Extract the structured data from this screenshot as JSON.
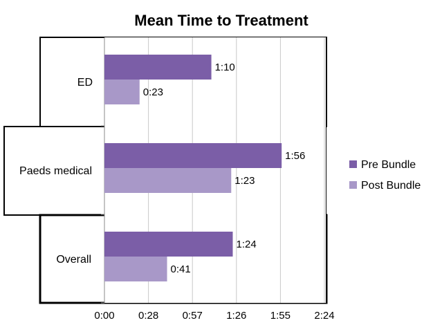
{
  "chart_data": {
    "type": "bar",
    "orientation": "horizontal",
    "title": "Mean Time to Treatment",
    "categories": [
      "ED",
      "Paeds medical",
      "Overall"
    ],
    "series": [
      {
        "name": "Pre Bundle",
        "color": "#7b5ea7",
        "values": [
          70,
          116,
          84
        ],
        "labels": [
          "1:10",
          "1:56",
          "1:24"
        ]
      },
      {
        "name": "Post Bundle",
        "color": "#a898c8",
        "values": [
          23,
          83,
          41
        ],
        "labels": [
          "0:23",
          "1:23",
          "0:41"
        ]
      }
    ],
    "xlim": [
      0,
      144
    ],
    "xticks": [
      0,
      28.8,
      57.6,
      86.4,
      115.2,
      144
    ],
    "xtick_labels": [
      "0:00",
      "0:28",
      "0:57",
      "1:26",
      "1:55",
      "2:24"
    ],
    "xunit": "minutes",
    "grid": "vertical",
    "legend": "right"
  }
}
